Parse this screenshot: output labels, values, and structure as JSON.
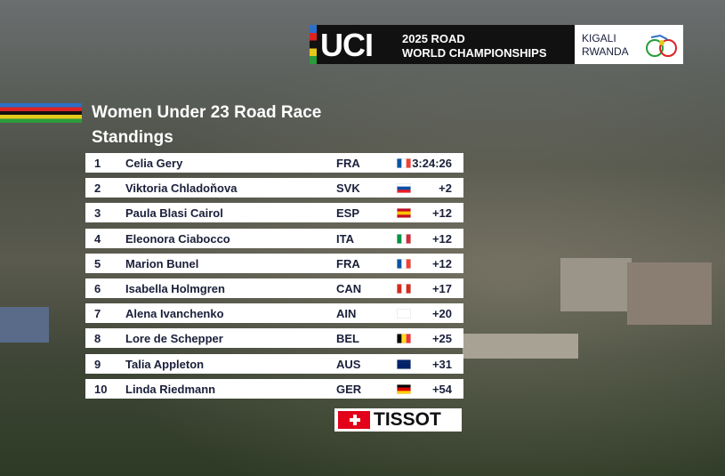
{
  "header": {
    "logo": "UCI",
    "event_line1": "2025 ROAD",
    "event_line2": "WORLD CHAMPIONSHIPS",
    "city": "KIGALI",
    "country": "RWANDA"
  },
  "standings": {
    "title": "Women Under 23 Road Race",
    "subtitle": "Standings",
    "rows": [
      {
        "rank": "1",
        "name": "Celia Gery",
        "nation": "FRA",
        "time": "3:24:26"
      },
      {
        "rank": "2",
        "name": "Viktoria Chladoňova",
        "nation": "SVK",
        "time": "+2"
      },
      {
        "rank": "3",
        "name": "Paula Blasi Cairol",
        "nation": "ESP",
        "time": "+12"
      },
      {
        "rank": "4",
        "name": "Eleonora Ciabocco",
        "nation": "ITA",
        "time": "+12"
      },
      {
        "rank": "5",
        "name": "Marion Bunel",
        "nation": "FRA",
        "time": "+12"
      },
      {
        "rank": "6",
        "name": "Isabella Holmgren",
        "nation": "CAN",
        "time": "+17"
      },
      {
        "rank": "7",
        "name": "Alena Ivanchenko",
        "nation": "AIN",
        "time": "+20"
      },
      {
        "rank": "8",
        "name": "Lore de Schepper",
        "nation": "BEL",
        "time": "+25"
      },
      {
        "rank": "9",
        "name": "Talia Appleton",
        "nation": "AUS",
        "time": "+31"
      },
      {
        "rank": "10",
        "name": "Linda Riedmann",
        "nation": "GER",
        "time": "+54"
      }
    ]
  },
  "sponsor": {
    "name": "TISSOT"
  }
}
